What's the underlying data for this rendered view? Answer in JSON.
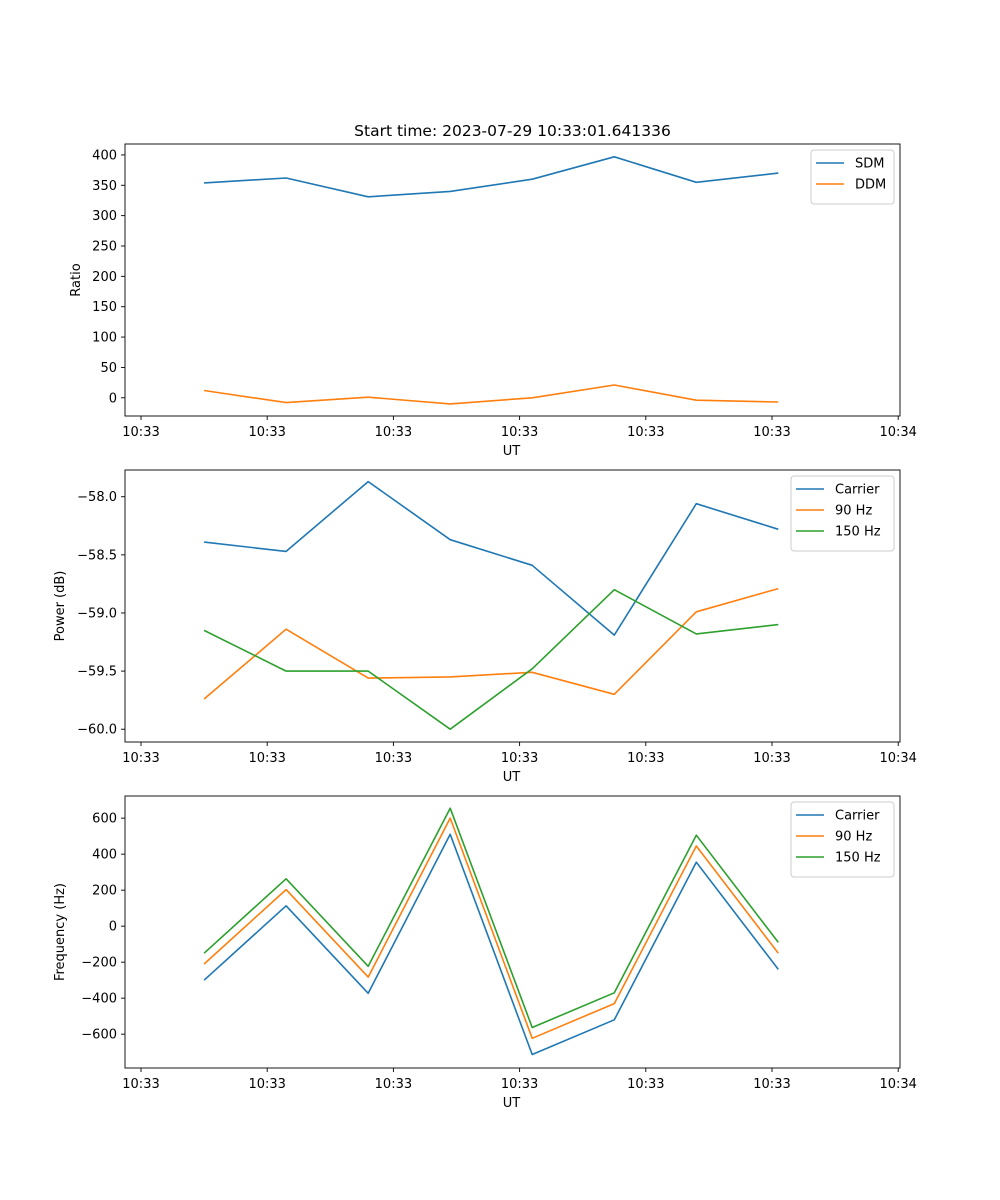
{
  "chart_data": [
    {
      "type": "line",
      "title": "Start time: 2023-07-29 10:33:01.641336",
      "xlabel": "UT",
      "ylabel": "Ratio",
      "x_tick_labels": [
        "10:33",
        "10:33",
        "10:33",
        "10:33",
        "10:33",
        "10:33",
        "10:34"
      ],
      "x_range": [
        0,
        6
      ],
      "x": [
        0.5,
        1.15,
        1.8,
        2.45,
        3.1,
        3.75,
        4.4,
        5.05
      ],
      "ylim": [
        -30,
        418
      ],
      "y_ticks": [
        0,
        50,
        100,
        150,
        200,
        250,
        300,
        350,
        400
      ],
      "legend_position": "top-right",
      "series": [
        {
          "name": "SDM",
          "color": "#1f77b4",
          "values": [
            354,
            362,
            331,
            340,
            360,
            397,
            355,
            370
          ]
        },
        {
          "name": "DDM",
          "color": "#ff7f0e",
          "values": [
            12,
            -8,
            1,
            -10,
            0,
            21,
            -4,
            -7
          ]
        }
      ]
    },
    {
      "type": "line",
      "title": "",
      "xlabel": "UT",
      "ylabel": "Power (dB)",
      "x_tick_labels": [
        "10:33",
        "10:33",
        "10:33",
        "10:33",
        "10:33",
        "10:33",
        "10:34"
      ],
      "x_range": [
        0,
        6
      ],
      "x": [
        0.5,
        1.15,
        1.8,
        2.45,
        3.1,
        3.75,
        4.4,
        5.05
      ],
      "ylim": [
        -60.11,
        -57.77
      ],
      "y_ticks": [
        -60.0,
        -59.5,
        -59.0,
        -58.5,
        -58.0
      ],
      "y_tick_labels": [
        "−60.0",
        "−59.5",
        "−59.0",
        "−58.5",
        "−58.0"
      ],
      "legend_position": "top-right",
      "series": [
        {
          "name": "Carrier",
          "color": "#1f77b4",
          "values": [
            -58.39,
            -58.47,
            -57.87,
            -58.37,
            -58.59,
            -59.19,
            -58.06,
            -58.28
          ]
        },
        {
          "name": "90 Hz",
          "color": "#ff7f0e",
          "values": [
            -59.74,
            -59.14,
            -59.56,
            -59.55,
            -59.51,
            -59.7,
            -58.99,
            -58.79
          ]
        },
        {
          "name": "150 Hz",
          "color": "#2ca02c",
          "values": [
            -59.15,
            -59.5,
            -59.5,
            -60.0,
            -59.48,
            -58.8,
            -59.18,
            -59.1
          ]
        }
      ]
    },
    {
      "type": "line",
      "title": "",
      "xlabel": "UT",
      "ylabel": "Frequency (Hz)",
      "x_tick_labels": [
        "10:33",
        "10:33",
        "10:33",
        "10:33",
        "10:33",
        "10:33",
        "10:34"
      ],
      "x_range": [
        0,
        6
      ],
      "x": [
        0.5,
        1.15,
        1.8,
        2.45,
        3.1,
        3.75,
        4.4,
        5.05
      ],
      "ylim": [
        -788,
        723
      ],
      "y_ticks": [
        -600,
        -400,
        -200,
        0,
        200,
        400,
        600
      ],
      "y_tick_labels": [
        "−600",
        "−400",
        "−200",
        "0",
        "200",
        "400",
        "600"
      ],
      "legend_position": "top-right",
      "series": [
        {
          "name": "Carrier",
          "color": "#1f77b4",
          "values": [
            -300,
            113,
            -373,
            510,
            -713,
            -520,
            355,
            -240
          ]
        },
        {
          "name": "90 Hz",
          "color": "#ff7f0e",
          "values": [
            -210,
            203,
            -283,
            600,
            -623,
            -430,
            445,
            -150
          ]
        },
        {
          "name": "150 Hz",
          "color": "#2ca02c",
          "values": [
            -150,
            263,
            -223,
            655,
            -563,
            -370,
            505,
            -90
          ]
        }
      ]
    }
  ]
}
